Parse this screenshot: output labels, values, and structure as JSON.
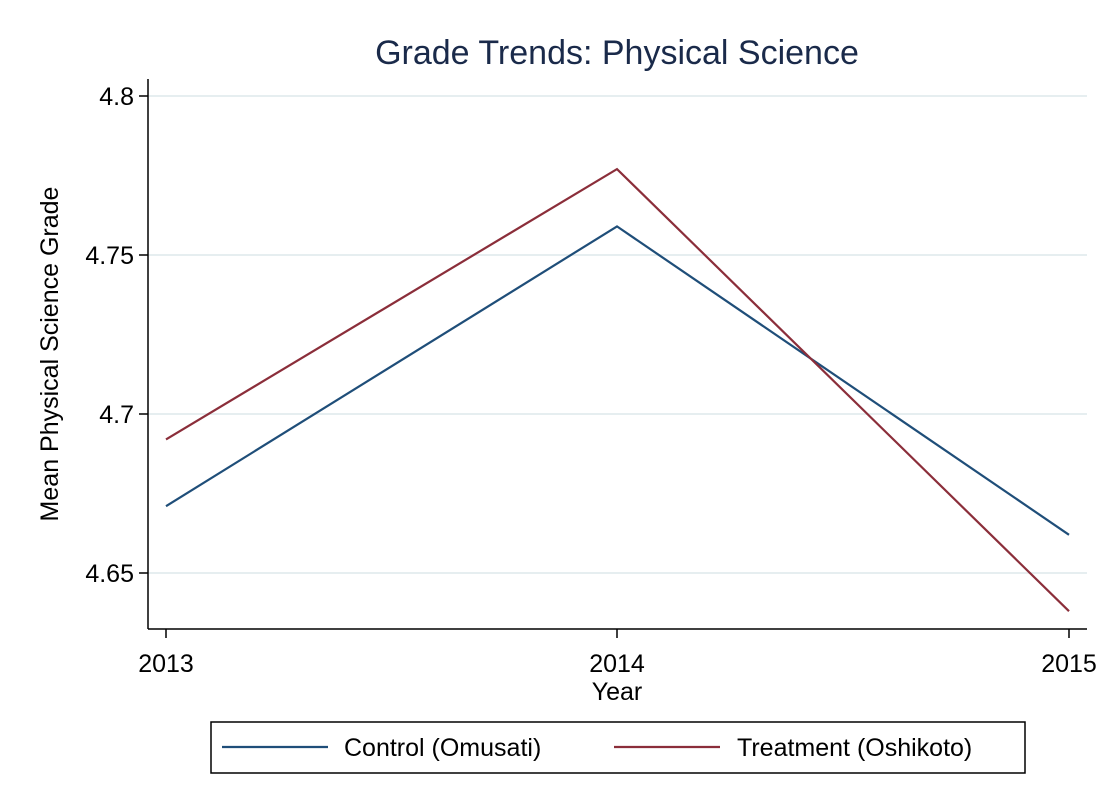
{
  "chart_data": {
    "type": "line",
    "title": "Grade Trends: Physical Science",
    "xlabel": "Year",
    "ylabel": "Mean Physical Science Grade",
    "categories": [
      "2013",
      "2014",
      "2015"
    ],
    "y_ticks": [
      "4.65",
      "4.7",
      "4.75",
      "4.8"
    ],
    "y_tick_values": [
      4.65,
      4.7,
      4.75,
      4.8
    ],
    "ylim": [
      4.632,
      4.805
    ],
    "grid": true,
    "legend_position": "bottom",
    "series": [
      {
        "name": "Control (Omusati)",
        "values": [
          4.671,
          4.759,
          4.662
        ],
        "color": "#1f4e79"
      },
      {
        "name": "Treatment (Oshikoto)",
        "values": [
          4.692,
          4.777,
          4.638
        ],
        "color": "#8b2e3a"
      }
    ]
  }
}
